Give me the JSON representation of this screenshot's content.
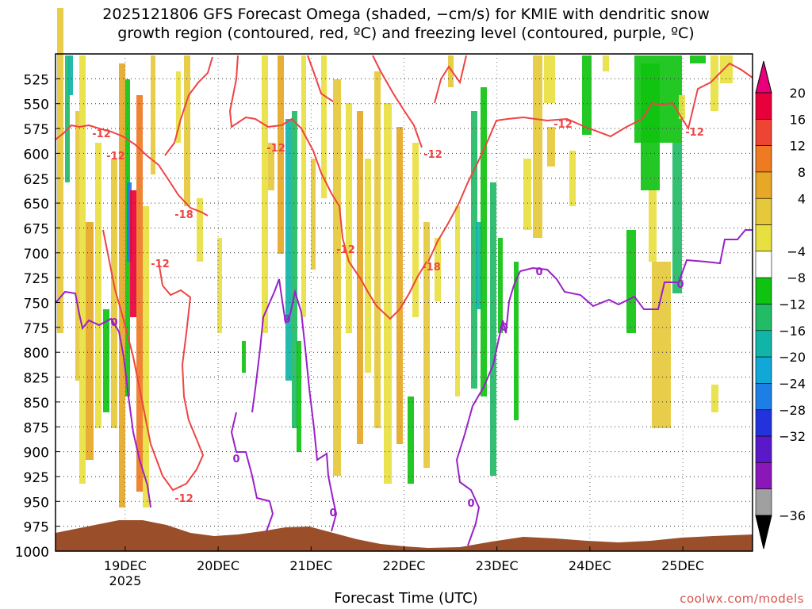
{
  "title_line1": "2025121806 GFS Forecast Omega (shaded, −cm/s) for KMIE with dendritic snow",
  "title_line2": "growth region (contoured, red, ºC) and freezing level (contoured, purple, ºC)",
  "credit": "coolwx.com/models",
  "chart_data": {
    "type": "heatmap",
    "xlabel": "Forecast Time (UTC)",
    "x_ticks": [
      {
        "label": "19DEC",
        "sub": "2025",
        "day": 19
      },
      {
        "label": "20DEC",
        "sub": "",
        "day": 20
      },
      {
        "label": "21DEC",
        "sub": "",
        "day": 21
      },
      {
        "label": "22DEC",
        "sub": "",
        "day": 22
      },
      {
        "label": "23DEC",
        "sub": "",
        "day": 23
      },
      {
        "label": "24DEC",
        "sub": "",
        "day": 24
      },
      {
        "label": "25DEC",
        "sub": "",
        "day": 25
      }
    ],
    "x_range_days": [
      18.25,
      25.75
    ],
    "y_levels_hPa": [
      525,
      550,
      575,
      600,
      625,
      650,
      675,
      700,
      725,
      750,
      775,
      800,
      825,
      850,
      875,
      900,
      925,
      950,
      975,
      1000
    ],
    "y_range_hPa": [
      500,
      1000
    ],
    "grid": true,
    "colorbar": {
      "labels": [
        "20",
        "16",
        "12",
        "8",
        "4",
        "−4",
        "−8",
        "−12",
        "−16",
        "−20",
        "−24",
        "−28",
        "−32",
        "−36"
      ],
      "colors": [
        "#e8003a",
        "#ee4433",
        "#ee7a22",
        "#e6a826",
        "#e5c93a",
        "#e8e040",
        "#ffffff",
        "#11c311",
        "#22bb66",
        "#11b5a8",
        "#11a8d8",
        "#1d7fe6",
        "#2233dd",
        "#5a18c8",
        "#8a18b8",
        "#a0a0a0"
      ],
      "top_arrow_color": "#e8007a",
      "bottom_arrow_color": "#000000"
    },
    "red_contour_labels": [
      "-12",
      "-12",
      "-18",
      "-12",
      "-12",
      "-12",
      "-12",
      "-18",
      "-12",
      "-12",
      "-12"
    ],
    "purple_contour_labels": [
      "0",
      "0",
      "0",
      "0",
      "0",
      "0",
      "0",
      "0"
    ],
    "terrain_color": "#9a4f2a",
    "red_contour_color": "#ee4444",
    "purple_contour_color": "#9a20c8"
  }
}
